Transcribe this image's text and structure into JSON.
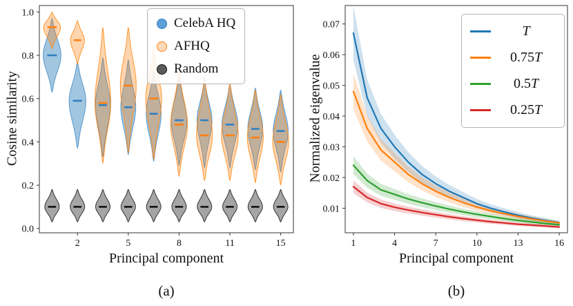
{
  "figure": {
    "caption_a": "(a)",
    "caption_b": "(b)"
  },
  "chart_data": [
    {
      "type": "violin",
      "xlabel": "Principal component",
      "ylabel": "Cosine similarity",
      "ylim": [
        -0.02,
        1.03
      ],
      "yticks": [
        0.0,
        0.2,
        0.4,
        0.6,
        0.8,
        1.0
      ],
      "ytick_labels": [
        "0.0",
        "0.2",
        "0.4",
        "0.6",
        "0.8",
        "1.0"
      ],
      "xtick_slots": [
        1,
        3,
        5,
        7,
        9
      ],
      "xtick_labels": [
        "2",
        "5",
        "8",
        "11",
        "15"
      ],
      "legend": [
        {
          "label": "CelebA HQ",
          "edge": "#2f7fc1",
          "fill": "#5e9fd8"
        },
        {
          "label": "AFHQ",
          "edge": "#ff7f0e",
          "fill": "#fcd9b8"
        },
        {
          "label": "Random",
          "edge": "#111111",
          "fill": "#5a5a5a"
        }
      ],
      "series": [
        {
          "name": "CelebA HQ",
          "color": "#1f77b4",
          "stroke": "#4a8fc7",
          "median_color": "#2f7fc1",
          "fill_opacity": 0.42,
          "violins": [
            {
              "median": 0.8,
              "lo": 0.63,
              "hi": 0.97,
              "w": 0.95
            },
            {
              "median": 0.59,
              "lo": 0.37,
              "hi": 0.77,
              "w": 0.9
            },
            {
              "median": 0.57,
              "lo": 0.33,
              "hi": 0.79,
              "w": 0.8
            },
            {
              "median": 0.56,
              "lo": 0.34,
              "hi": 0.78,
              "w": 0.8
            },
            {
              "median": 0.53,
              "lo": 0.31,
              "hi": 0.73,
              "w": 0.8
            },
            {
              "median": 0.5,
              "lo": 0.29,
              "hi": 0.7,
              "w": 0.85
            },
            {
              "median": 0.5,
              "lo": 0.28,
              "hi": 0.69,
              "w": 0.8
            },
            {
              "median": 0.48,
              "lo": 0.28,
              "hi": 0.67,
              "w": 0.85
            },
            {
              "median": 0.46,
              "lo": 0.27,
              "hi": 0.65,
              "w": 0.8
            },
            {
              "median": 0.45,
              "lo": 0.26,
              "hi": 0.64,
              "w": 0.8
            }
          ]
        },
        {
          "name": "AFHQ",
          "color": "#ff7f0e",
          "stroke": "#ff8c1a",
          "median_color": "#ff7f0e",
          "fill_opacity": 0.33,
          "violins": [
            {
              "median": 0.93,
              "lo": 0.83,
              "hi": 1.0,
              "w": 0.9
            },
            {
              "median": 0.87,
              "lo": 0.76,
              "hi": 0.96,
              "w": 0.75
            },
            {
              "median": 0.58,
              "lo": 0.3,
              "hi": 0.93,
              "w": 0.85
            },
            {
              "median": 0.66,
              "lo": 0.35,
              "hi": 0.93,
              "w": 0.85
            },
            {
              "median": 0.6,
              "lo": 0.32,
              "hi": 0.83,
              "w": 0.85
            },
            {
              "median": 0.48,
              "lo": 0.24,
              "hi": 0.73,
              "w": 0.9
            },
            {
              "median": 0.43,
              "lo": 0.22,
              "hi": 0.7,
              "w": 0.85
            },
            {
              "median": 0.43,
              "lo": 0.22,
              "hi": 0.67,
              "w": 0.9
            },
            {
              "median": 0.42,
              "lo": 0.21,
              "hi": 0.64,
              "w": 0.85
            },
            {
              "median": 0.4,
              "lo": 0.2,
              "hi": 0.62,
              "w": 0.85
            }
          ]
        },
        {
          "name": "Random",
          "color": "#7f7f7f",
          "stroke": "#222222",
          "median_color": "#111111",
          "fill_opacity": 0.7,
          "violins": [
            {
              "median": 0.1,
              "lo": 0.03,
              "hi": 0.18,
              "w": 0.78
            },
            {
              "median": 0.1,
              "lo": 0.03,
              "hi": 0.18,
              "w": 0.78
            },
            {
              "median": 0.1,
              "lo": 0.03,
              "hi": 0.18,
              "w": 0.78
            },
            {
              "median": 0.1,
              "lo": 0.03,
              "hi": 0.18,
              "w": 0.78
            },
            {
              "median": 0.1,
              "lo": 0.03,
              "hi": 0.18,
              "w": 0.78
            },
            {
              "median": 0.1,
              "lo": 0.03,
              "hi": 0.18,
              "w": 0.78
            },
            {
              "median": 0.1,
              "lo": 0.03,
              "hi": 0.18,
              "w": 0.78
            },
            {
              "median": 0.1,
              "lo": 0.03,
              "hi": 0.18,
              "w": 0.78
            },
            {
              "median": 0.1,
              "lo": 0.03,
              "hi": 0.18,
              "w": 0.78
            },
            {
              "median": 0.1,
              "lo": 0.03,
              "hi": 0.18,
              "w": 0.78
            }
          ]
        }
      ]
    },
    {
      "type": "line",
      "xlabel": "Principal component",
      "ylabel": "Normalized eigenvalue",
      "x": [
        1,
        2,
        3,
        4,
        5,
        6,
        7,
        8,
        9,
        10,
        11,
        12,
        13,
        14,
        15,
        16
      ],
      "xticks": [
        1,
        4,
        7,
        10,
        13,
        16
      ],
      "xtick_labels": [
        "1",
        "4",
        "7",
        "10",
        "13",
        "16"
      ],
      "ylim": [
        0.002,
        0.076
      ],
      "yticks": [
        0.01,
        0.02,
        0.03,
        0.04,
        0.05,
        0.06,
        0.07
      ],
      "ytick_labels": [
        "0.01",
        "0.02",
        "0.03",
        "0.04",
        "0.05",
        "0.06",
        "0.07"
      ],
      "legend": [
        {
          "prefix": "",
          "tchar": "T"
        },
        {
          "prefix": "0.75",
          "tchar": "T"
        },
        {
          "prefix": "0.5",
          "tchar": "T"
        },
        {
          "prefix": "0.25",
          "tchar": "T"
        }
      ],
      "series": [
        {
          "name": "T",
          "color": "#1f77b4",
          "band": 0.13,
          "values": [
            0.067,
            0.046,
            0.036,
            0.03,
            0.025,
            0.021,
            0.018,
            0.0155,
            0.0135,
            0.0115,
            0.01,
            0.0088,
            0.0077,
            0.0068,
            0.006,
            0.0053
          ]
        },
        {
          "name": "0.75T",
          "color": "#ff7f0e",
          "band": 0.12,
          "values": [
            0.048,
            0.036,
            0.029,
            0.025,
            0.021,
            0.018,
            0.0155,
            0.0135,
            0.0118,
            0.0104,
            0.0092,
            0.0082,
            0.0073,
            0.0065,
            0.0058,
            0.0052
          ]
        },
        {
          "name": "0.5T",
          "color": "#2ca02c",
          "band": 0.12,
          "values": [
            0.024,
            0.019,
            0.016,
            0.0145,
            0.013,
            0.0118,
            0.0107,
            0.0097,
            0.0088,
            0.008,
            0.0073,
            0.0066,
            0.006,
            0.0055,
            0.005,
            0.0046
          ]
        },
        {
          "name": "0.25T",
          "color": "#d62728",
          "band": 0.12,
          "values": [
            0.017,
            0.0135,
            0.0115,
            0.0103,
            0.0094,
            0.0086,
            0.0079,
            0.0072,
            0.0066,
            0.0061,
            0.0056,
            0.0052,
            0.0048,
            0.0045,
            0.0042,
            0.0039
          ]
        }
      ]
    }
  ]
}
